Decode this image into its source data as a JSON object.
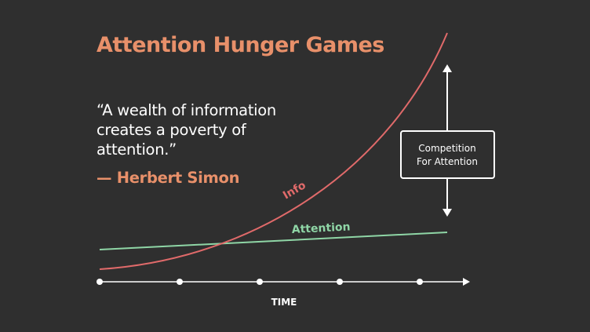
{
  "colors": {
    "background": "#2f2f2f",
    "accent": "#e8906a",
    "info_curve": "#e06a6a",
    "attention_line": "#8fd6a6",
    "text": "#ffffff"
  },
  "slide": {
    "title": "Attention Hunger Games",
    "quote": "“A wealth of information creates a poverty of attention.”",
    "author": "— Herbert Simon"
  },
  "diagram": {
    "info_label": "Info",
    "attention_label": "Attention",
    "box_line1": "Competition",
    "box_line2": "For Attention",
    "axis_label": "TIME",
    "axis_markers": 5
  }
}
